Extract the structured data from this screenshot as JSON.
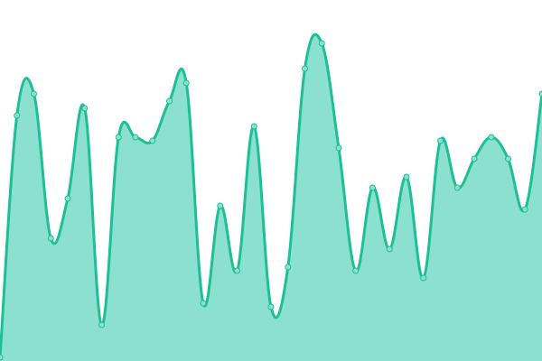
{
  "chart_data": {
    "type": "area",
    "title": "",
    "xlabel": "",
    "ylabel": "",
    "x": [
      0,
      1,
      2,
      3,
      4,
      5,
      6,
      7,
      8,
      9,
      10,
      11,
      12,
      13,
      14,
      15,
      16,
      17,
      18,
      19,
      20,
      21,
      22,
      23,
      24,
      25,
      26,
      27,
      28,
      29,
      30,
      31,
      32
    ],
    "values": [
      1,
      68,
      74,
      34,
      45,
      70,
      10,
      62,
      62,
      61,
      72,
      77,
      16,
      43,
      25,
      65,
      15,
      26,
      81,
      88,
      59,
      25,
      48,
      31,
      51,
      23,
      61,
      48,
      56,
      62,
      56,
      42,
      74
    ],
    "ylim": [
      0,
      100
    ],
    "grid": false,
    "axes_visible": false,
    "smooth": true,
    "colors": {
      "line": "#1dbf95",
      "fill": "#8be0cf",
      "point_fill": "#8be0cf",
      "point_stroke": "#1dbf95"
    }
  }
}
